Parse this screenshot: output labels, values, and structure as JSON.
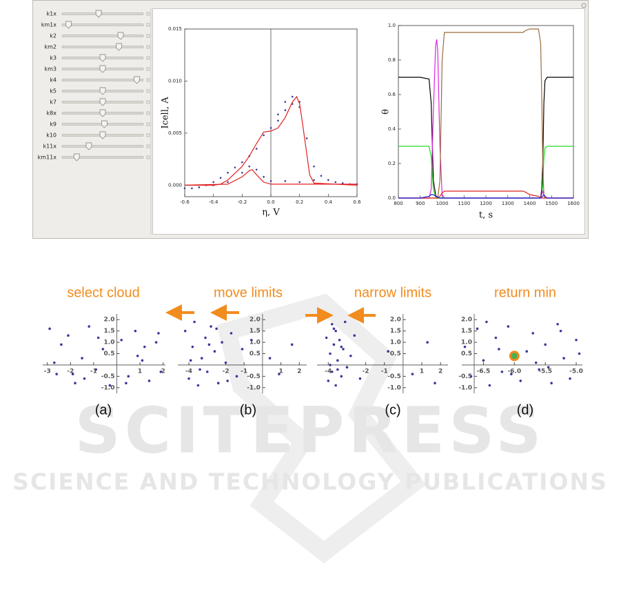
{
  "watermark": [
    "SCITEPRESS",
    "SCIENCE AND TECHNOLOGY PUBLICATIONS"
  ],
  "sliders": [
    {
      "label": "k1x",
      "value": 0.45
    },
    {
      "label": "km1x",
      "value": 0.08
    },
    {
      "label": "k2",
      "value": 0.72
    },
    {
      "label": "km2",
      "value": 0.7
    },
    {
      "label": "k3",
      "value": 0.5
    },
    {
      "label": "km3",
      "value": 0.5
    },
    {
      "label": "k4",
      "value": 0.92
    },
    {
      "label": "k5",
      "value": 0.5
    },
    {
      "label": "k7",
      "value": 0.5
    },
    {
      "label": "k8x",
      "value": 0.5
    },
    {
      "label": "k9",
      "value": 0.52
    },
    {
      "label": "k10",
      "value": 0.5
    },
    {
      "label": "k11x",
      "value": 0.33
    },
    {
      "label": "km11x",
      "value": 0.18
    }
  ],
  "chart_data": [
    {
      "type": "line",
      "xlabel": "η, V",
      "ylabel": "Icell, A",
      "xlim": [
        -0.6,
        0.6
      ],
      "xticks": [
        -0.6,
        -0.4,
        -0.2,
        {
          "value": 0,
          "label": "0.0"
        },
        0.2,
        0.4,
        0.6
      ],
      "ylim": [
        -0.0011,
        0.015
      ],
      "yticks": [
        {
          "value": 0,
          "label": "0.000"
        },
        0.005,
        {
          "value": 0.01,
          "label": "0.010"
        },
        0.015
      ],
      "series": [
        {
          "color": "#3a3a9a",
          "mode": "points",
          "x": [
            -0.6,
            -0.55,
            -0.5,
            -0.45,
            -0.4,
            -0.35,
            -0.3,
            -0.25,
            -0.2,
            -0.15,
            -0.1,
            -0.05,
            0,
            0.05,
            0.1,
            0.15,
            0.2,
            0.25,
            0.3,
            0.35,
            0.4,
            0.5,
            0.6,
            0.3,
            0.2,
            0.1,
            0,
            -0.05,
            -0.1,
            -0.15,
            -0.2,
            -0.3,
            -0.4,
            -0.5,
            0.05,
            0.1,
            0.15,
            0.2,
            0.45,
            0.55
          ],
          "values": [
            -0.0003,
            -0.0003,
            -0.0002,
            0,
            0.0003,
            0.0007,
            0.0012,
            0.0017,
            0.0022,
            0.0028,
            0.0035,
            0.0048,
            0.0055,
            0.0062,
            0.0072,
            0.0078,
            0.0075,
            0.0045,
            0.0018,
            0.0009,
            0.0005,
            0.0002,
            0.0001,
            0.0005,
            0.0003,
            0.0004,
            0.0004,
            0.0008,
            0.0015,
            0.0018,
            0.0012,
            0.0003,
            0,
            -0.0002,
            0.0068,
            0.008,
            0.0085,
            0.008,
            0.0003,
            0.0001
          ]
        },
        {
          "color": "#e02020",
          "mode": "line",
          "x": [
            -0.6,
            -0.4,
            -0.35,
            -0.3,
            -0.2,
            -0.15,
            -0.1,
            -0.05,
            0,
            0.05,
            0.1,
            0.15,
            0.18,
            0.2,
            0.22,
            0.25,
            0.27,
            0.3,
            0.6
          ],
          "values": [
            0,
            0,
            0.0001,
            0.0005,
            0.0018,
            0.0028,
            0.004,
            0.0051,
            0.0052,
            0.0055,
            0.0065,
            0.008,
            0.0085,
            0.0078,
            0.006,
            0.003,
            0.001,
            0.0002,
            0
          ]
        },
        {
          "color": "#e02020",
          "mode": "line",
          "x": [
            -0.6,
            -0.3,
            -0.2,
            -0.15,
            -0.13,
            -0.1,
            -0.05,
            0,
            0.3,
            0.6
          ],
          "values": [
            0,
            0.0001,
            0.0008,
            0.0014,
            0.0015,
            0.001,
            0.0003,
            0.0001,
            0.0001,
            0.0001
          ]
        }
      ]
    },
    {
      "type": "line",
      "xlabel": "t, s",
      "ylabel": "θ",
      "xlim": [
        800,
        1600
      ],
      "xticks": [
        800,
        900,
        1000,
        1100,
        1200,
        1300,
        1400,
        1500,
        1600
      ],
      "ylim": [
        0,
        1
      ],
      "yticks": [
        {
          "value": 0,
          "label": "0.0"
        },
        0.2,
        0.4,
        0.6,
        0.8,
        {
          "value": 1,
          "label": "1.0"
        }
      ],
      "x": [
        800,
        900,
        940,
        950,
        960,
        970,
        975,
        980,
        990,
        1000,
        1010,
        1100,
        1370,
        1380,
        1400,
        1440,
        1450,
        1455,
        1460,
        1465,
        1470,
        1480,
        1600
      ],
      "series": [
        {
          "color": "#000000",
          "mode": "line",
          "values": [
            0.7,
            0.7,
            0.69,
            0.55,
            0.1,
            0.02,
            0,
            0,
            0,
            0,
            0,
            0,
            0,
            0,
            0,
            0,
            0,
            0.05,
            0.2,
            0.55,
            0.68,
            0.7,
            0.7
          ]
        },
        {
          "color": "#22dd22",
          "mode": "line",
          "values": [
            0.3,
            0.3,
            0.3,
            0.24,
            0.05,
            0.01,
            0,
            0,
            0,
            0,
            0,
            0,
            0,
            0,
            0,
            0,
            0,
            0.02,
            0.08,
            0.23,
            0.29,
            0.3,
            0.3
          ]
        },
        {
          "color": "#dd22dd",
          "mode": "line",
          "values": [
            0,
            0,
            0,
            0.05,
            0.5,
            0.88,
            0.92,
            0.85,
            0.3,
            0.02,
            0,
            0,
            0,
            0,
            0,
            0,
            0,
            0.02,
            0.04,
            0.02,
            0,
            0,
            0
          ]
        },
        {
          "color": "#9a6a3a",
          "mode": "line",
          "values": [
            0,
            0,
            0,
            0,
            0,
            0,
            0,
            0,
            0.1,
            0.8,
            0.96,
            0.96,
            0.96,
            0.97,
            0.98,
            0.98,
            0.9,
            0.6,
            0.2,
            0.02,
            0,
            0,
            0
          ]
        },
        {
          "color": "#e02020",
          "mode": "line",
          "values": [
            0,
            0,
            0,
            0,
            0,
            0,
            0,
            0,
            0.01,
            0.03,
            0.04,
            0.04,
            0.04,
            0.035,
            0.02,
            0.01,
            0.005,
            0,
            0,
            0,
            0,
            0,
            0
          ]
        },
        {
          "color": "#2020dd",
          "mode": "line",
          "values": [
            0,
            0,
            0.01,
            0.02,
            0.02,
            0.01,
            0.01,
            0.005,
            0,
            0,
            0,
            0,
            0,
            0,
            0,
            0,
            0,
            0.005,
            0.01,
            0.02,
            0.01,
            0,
            0
          ]
        }
      ]
    },
    {
      "type": "scatter",
      "title": "select cloud",
      "caption": "(a)",
      "color": "#3a3a9a",
      "xlim": [
        -3.2,
        2.1
      ],
      "xticks": [
        -3,
        -2,
        -1,
        1,
        2
      ],
      "ylim": [
        -1.25,
        2.25
      ],
      "yticks": [
        {
          "value": -1,
          "label": "-1.0"
        },
        -0.5,
        0.5,
        {
          "value": 1,
          "label": "1.0"
        },
        1.5,
        {
          "value": 2,
          "label": "2.0"
        }
      ],
      "x": [
        -2.9,
        -2.6,
        -2.4,
        -2.1,
        -1.8,
        -1.5,
        -1.2,
        -0.9,
        -0.6,
        -0.3,
        0.2,
        0.5,
        0.8,
        1.1,
        1.4,
        1.7,
        1.9,
        -2.7,
        -1.9,
        -0.8,
        0.4,
        1.2,
        1.8,
        -1.4,
        0.9
      ],
      "y": [
        1.6,
        -0.4,
        0.9,
        1.3,
        -0.8,
        0.3,
        1.7,
        -0.2,
        0.7,
        -0.9,
        1.1,
        -0.5,
        1.5,
        0.2,
        -0.7,
        1.0,
        -0.3,
        0.1,
        -0.4,
        1.2,
        -0.8,
        0.8,
        1.4,
        -0.6,
        0.4
      ]
    },
    {
      "type": "scatter",
      "title": "move limits",
      "caption": "(b)",
      "color": "#3a3a9a",
      "xlim": [
        -4.6,
        2.4
      ],
      "xticks": [
        -4,
        -2,
        -1,
        1,
        2
      ],
      "ylim": [
        -1.25,
        2.25
      ],
      "yticks": [
        {
          "value": -1,
          "label": "-1.0"
        },
        -0.5,
        0.5,
        {
          "value": 1,
          "label": "1.0"
        },
        1.5,
        {
          "value": 2,
          "label": "2.0"
        }
      ],
      "x": [
        -4.2,
        -4.0,
        -3.8,
        -3.7,
        -3.5,
        -3.3,
        -3.1,
        -3.0,
        -2.8,
        -2.6,
        -2.4,
        -2.2,
        -2.0,
        -1.7,
        -1.4,
        -1.1,
        -0.6,
        0.4,
        0.9,
        1.6,
        -3.9,
        -3.4,
        -2.9,
        -2.5,
        -1.9
      ],
      "y": [
        1.5,
        -0.6,
        0.8,
        1.9,
        -0.9,
        0.3,
        1.2,
        -0.3,
        1.7,
        0.6,
        -0.8,
        1.0,
        0.1,
        1.4,
        -0.5,
        0.7,
        1.1,
        0.3,
        -0.4,
        0.9,
        0.2,
        -0.2,
        0.9,
        1.6,
        -0.7
      ]
    },
    {
      "type": "scatter",
      "title": "narrow limits",
      "caption": "(c)",
      "color": "#3a3a9a",
      "xlim": [
        -4.6,
        2.4
      ],
      "xticks": [
        -4,
        -2,
        -1,
        1,
        2
      ],
      "ylim": [
        -1.25,
        2.25
      ],
      "yticks": [
        {
          "value": -1,
          "label": "-1.0"
        },
        -0.5,
        0.5,
        {
          "value": 1,
          "label": "1.0"
        },
        1.5,
        {
          "value": 2,
          "label": "2.0"
        }
      ],
      "x": [
        -4.1,
        -4.0,
        -3.9,
        -3.8,
        -3.8,
        -3.7,
        -3.6,
        -3.6,
        -3.5,
        -3.4,
        -3.3,
        -3.2,
        -3.1,
        -3.0,
        -2.8,
        -2.6,
        -2.3,
        -0.8,
        0.5,
        1.3,
        1.7,
        -3.9,
        -3.7,
        -3.5,
        -3.3
      ],
      "y": [
        1.2,
        -0.7,
        0.5,
        1.8,
        -0.3,
        0.9,
        -0.9,
        1.5,
        0.2,
        1.1,
        -0.5,
        0.7,
        1.9,
        -0.1,
        0.4,
        1.3,
        -0.6,
        0.6,
        -0.4,
        1.0,
        -0.8,
        0.0,
        1.6,
        -0.2,
        0.8
      ]
    },
    {
      "type": "scatter",
      "title": "return min",
      "caption": "(d)",
      "color": "#3a3a9a",
      "xlim": [
        -6.85,
        -4.9
      ],
      "xticks": [
        -6.5,
        {
          "value": -6,
          "label": "-6.0"
        },
        -5.5,
        {
          "value": -5,
          "label": "-5.0"
        }
      ],
      "ylim": [
        -1.25,
        2.25
      ],
      "yticks": [
        {
          "value": -1,
          "label": "-1.0"
        },
        -0.5,
        0.5,
        {
          "value": 1,
          "label": "1.0"
        },
        1.5,
        {
          "value": 2,
          "label": "2.0"
        }
      ],
      "x": [
        -6.8,
        -6.7,
        -6.6,
        -6.5,
        -6.4,
        -6.3,
        -6.2,
        -6.1,
        -5.9,
        -5.8,
        -5.7,
        -5.6,
        -5.5,
        -5.4,
        -5.3,
        -5.2,
        -5.1,
        -5.0,
        -4.95,
        -6.45,
        -6.05,
        -5.65,
        -5.25,
        -6.25,
        -5.45
      ],
      "y": [
        0.8,
        -0.5,
        1.6,
        0.2,
        -0.9,
        1.2,
        -0.3,
        1.7,
        -0.7,
        0.6,
        1.4,
        -0.2,
        0.9,
        -0.8,
        1.8,
        0.3,
        -0.6,
        1.1,
        0.5,
        1.9,
        -0.4,
        0.1,
        1.5,
        0.7,
        -0.1
      ],
      "highlight": {
        "x": -6.0,
        "y": 0.4
      }
    }
  ]
}
